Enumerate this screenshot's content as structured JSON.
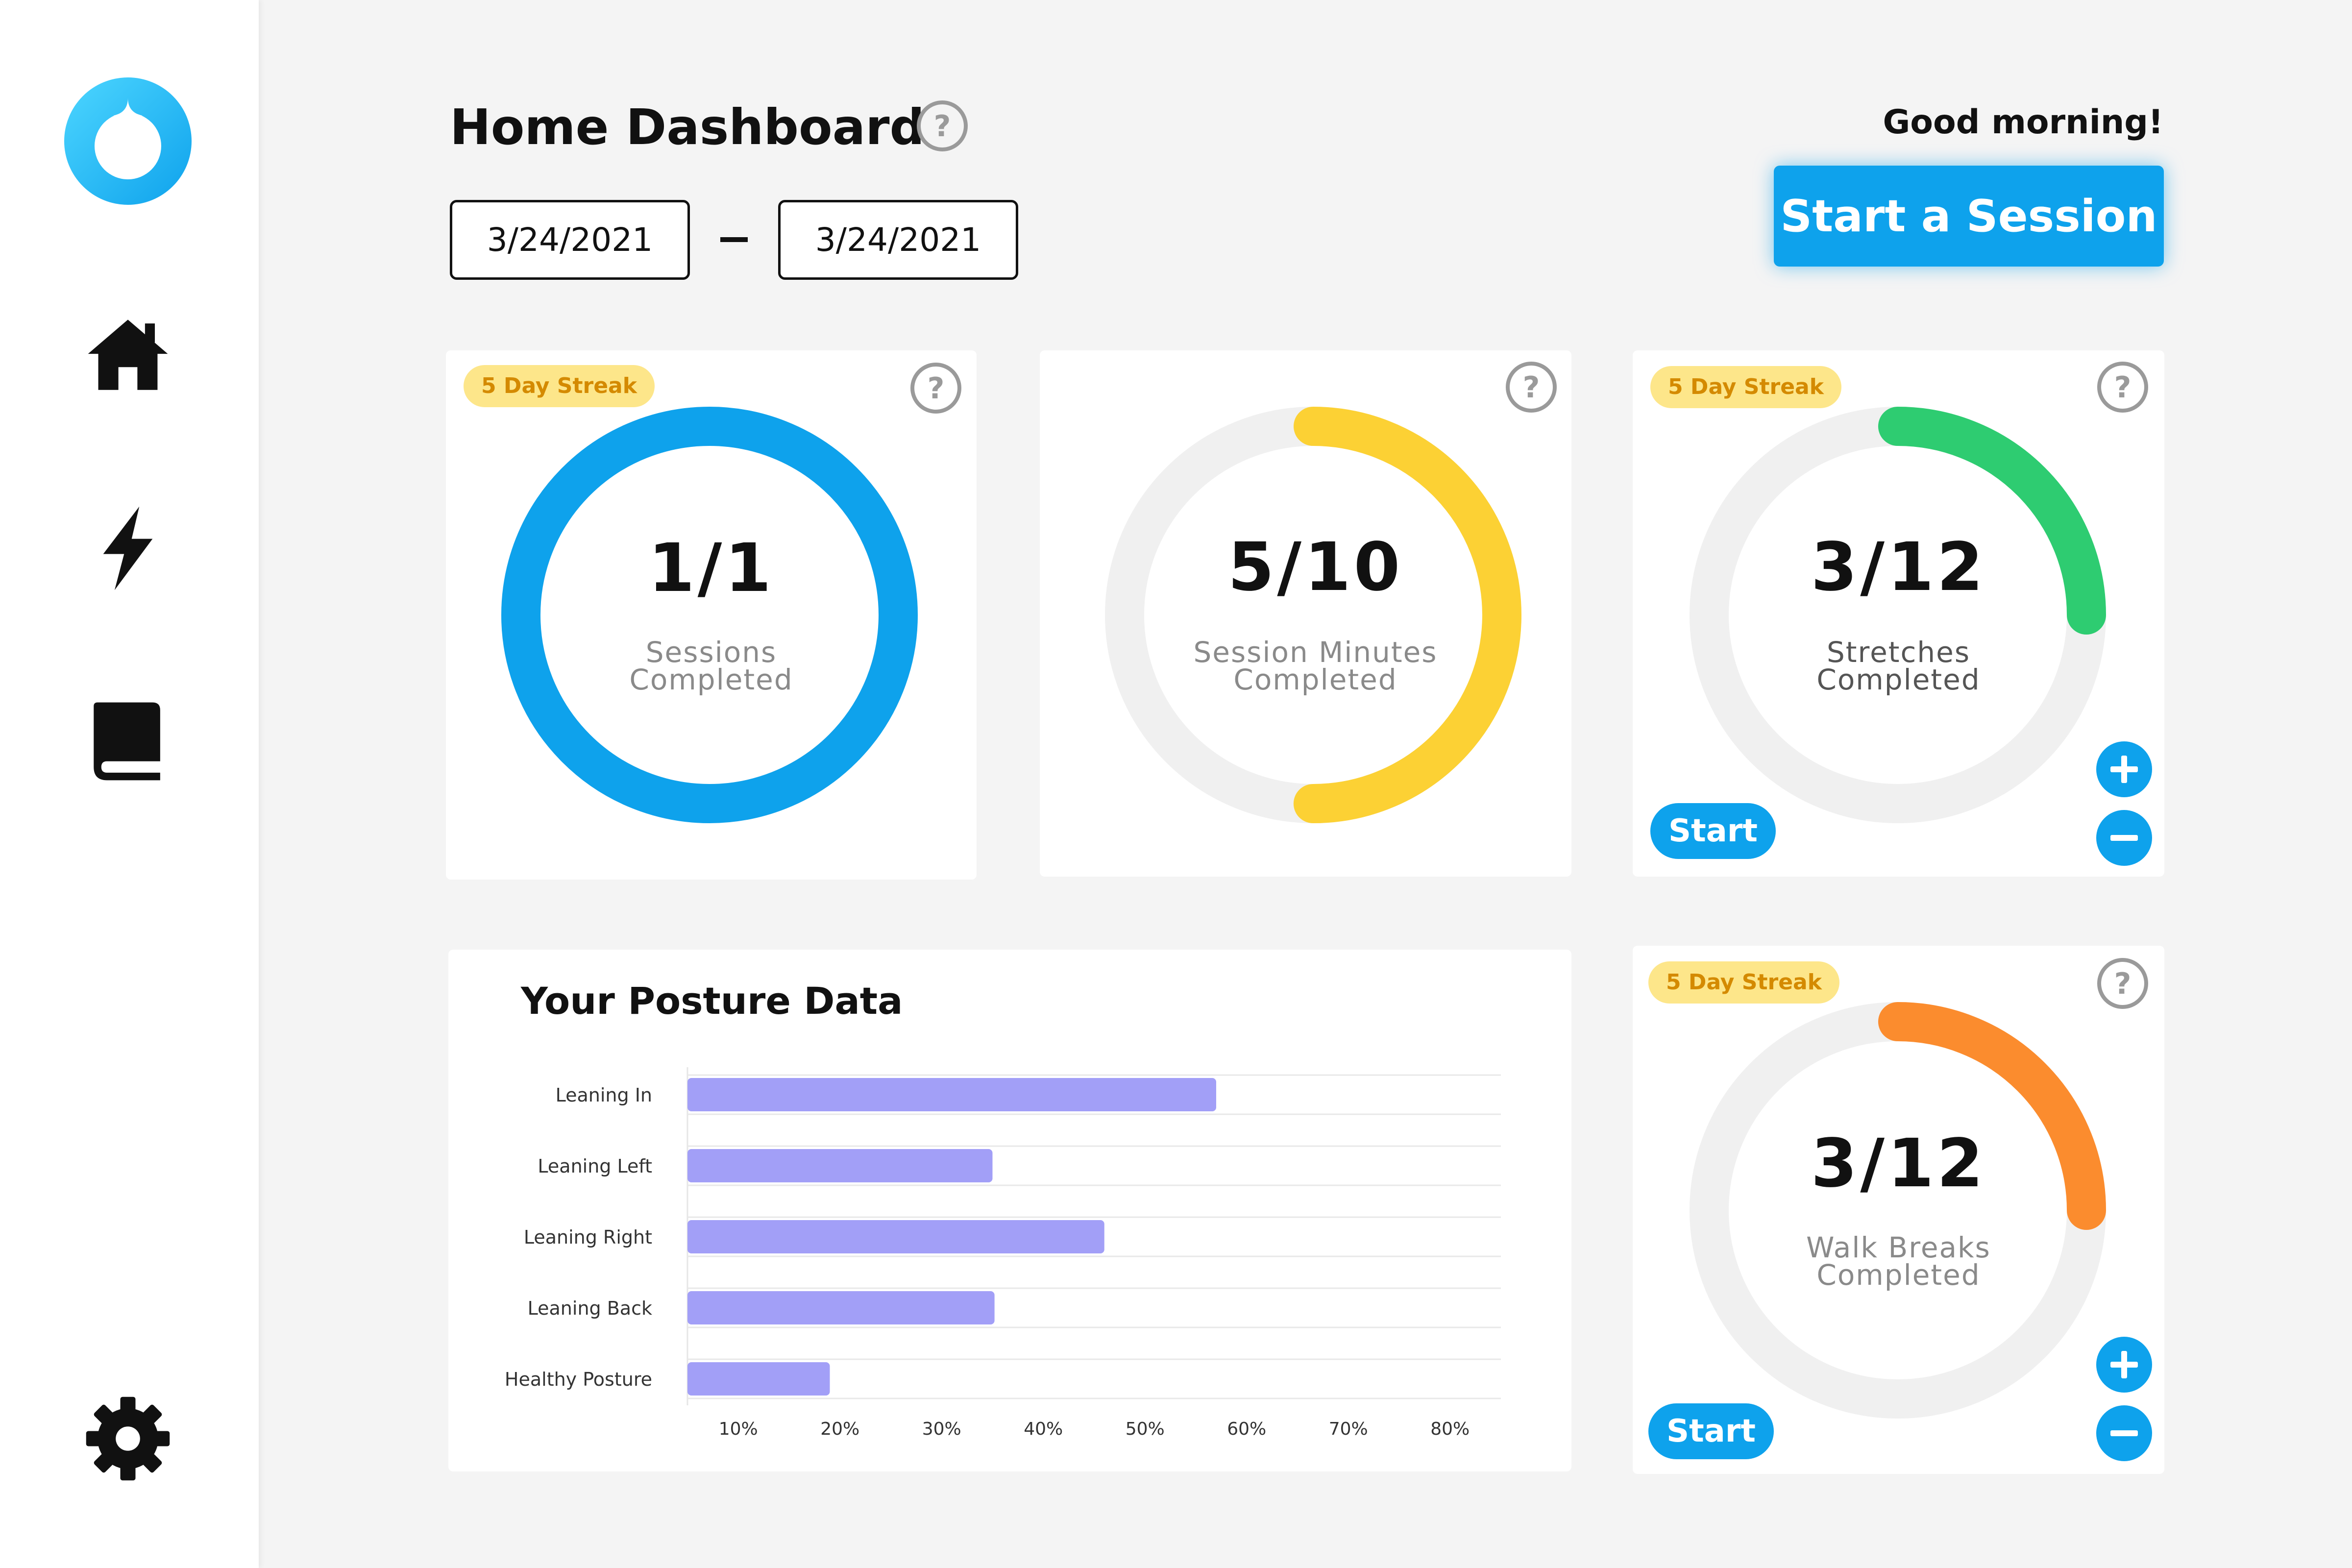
{
  "colors": {
    "accent": "#0ea2ec",
    "sessions_ring": "#0ea2ec",
    "minutes_ring": "#fcd134",
    "stretches_ring": "#2ecc71",
    "walks_ring": "#fb8c2e",
    "ring_track": "#f0f0f0",
    "bar": "#a29ff7",
    "streak_bg": "#fde68a",
    "streak_text": "#d48a00"
  },
  "sidebar": {
    "logo": "droplet-logo",
    "items": [
      {
        "icon": "home-icon"
      },
      {
        "icon": "lightning-bolt-icon"
      },
      {
        "icon": "book-icon"
      },
      {
        "icon": "gear-icon"
      }
    ]
  },
  "header": {
    "title": "Home Dashboard",
    "greeting": "Good morning!",
    "start_date": "3/24/2021",
    "end_date": "3/24/2021",
    "start_session_label": "Start a Session"
  },
  "cards": {
    "sessions": {
      "streak": "5 Day Streak",
      "value": "1/1",
      "label_line1": "Sessions",
      "label_line2": "Completed",
      "progress": 1.0
    },
    "minutes": {
      "value": "5/10",
      "label_line1": "Session Minutes",
      "label_line2": "Completed",
      "progress": 0.5
    },
    "stretches": {
      "streak": "5 Day Streak",
      "value": "3/12",
      "label_line1": "Stretches",
      "label_line2": "Completed",
      "progress": 0.25,
      "start_label": "Start"
    },
    "walks": {
      "streak": "5 Day Streak",
      "value": "3/12",
      "label_line1": "Walk Breaks",
      "label_line2": "Completed",
      "progress": 0.25,
      "start_label": "Start"
    }
  },
  "chart_data": {
    "type": "bar",
    "orientation": "horizontal",
    "title": "Your Posture Data",
    "categories": [
      "Leaning In",
      "Leaning Left",
      "Leaning Right",
      "Leaning Back",
      "Healthy Posture"
    ],
    "values": [
      57,
      35,
      46,
      35.2,
      19
    ],
    "x_ticks": [
      "10%",
      "20%",
      "30%",
      "40%",
      "50%",
      "60%",
      "70%",
      "80%"
    ],
    "xlim": [
      5,
      85
    ],
    "grid": true
  }
}
